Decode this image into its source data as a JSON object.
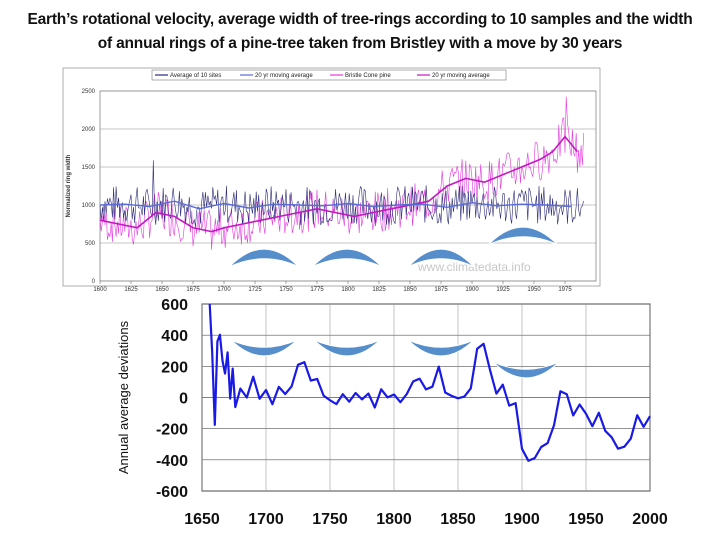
{
  "title": "Earth’s rotational velocity, average width of tree-rings according to 10 samples and the width of annual rings of a pine-tree taken from Bristley with a move by 30 years",
  "colors": {
    "navy": "#2b2b7a",
    "blue_light": "#5b6bd6",
    "magenta": "#e23adf",
    "magenta_dark": "#c218c0",
    "line2": "#1a1ae6",
    "arc": "#4d87c9"
  },
  "chart_data": [
    {
      "type": "line",
      "legend": [
        "Average of 10 sites",
        "20 yr moving average",
        "Bristle Cone pine",
        "20 yr moving average"
      ],
      "legend_placement": "top",
      "ylabel": "Normalized ring width",
      "watermark": "www.climatedata.info",
      "xlim": [
        1600,
        2000
      ],
      "ylim": [
        0,
        2500
      ],
      "yticks": [
        0,
        500,
        1000,
        1500,
        2000,
        2500
      ],
      "xticks": [
        1600,
        1625,
        1650,
        1675,
        1700,
        1725,
        1750,
        1775,
        1800,
        1825,
        1850,
        1875,
        1900,
        1925,
        1950,
        1975
      ],
      "grid": true,
      "series": [
        {
          "name": "20 yr moving average",
          "x": [
            1600,
            1620,
            1640,
            1660,
            1680,
            1700,
            1720,
            1740,
            1760,
            1780,
            1800,
            1820,
            1840,
            1860,
            1880,
            1900,
            1920,
            1940,
            1960,
            1980
          ],
          "values": [
            1000,
            1010,
            980,
            1050,
            950,
            1020,
            960,
            1010,
            1000,
            990,
            1020,
            980,
            1000,
            1010,
            970,
            1030,
            990,
            1010,
            1000,
            980
          ]
        },
        {
          "name": "20 yr moving average",
          "x": [
            1600,
            1615,
            1630,
            1645,
            1660,
            1675,
            1690,
            1700,
            1715,
            1730,
            1745,
            1760,
            1775,
            1790,
            1805,
            1820,
            1835,
            1850,
            1865,
            1880,
            1895,
            1910,
            1925,
            1940,
            1955,
            1965,
            1975,
            1985
          ],
          "values": [
            800,
            750,
            700,
            900,
            850,
            700,
            650,
            700,
            750,
            800,
            850,
            900,
            950,
            900,
            850,
            900,
            950,
            1000,
            1050,
            1250,
            1350,
            1300,
            1400,
            1500,
            1600,
            1700,
            1900,
            1700
          ]
        }
      ]
    },
    {
      "type": "line",
      "ylabel": "Annual average deviations",
      "xlim": [
        1650,
        2000
      ],
      "ylim": [
        -600,
        600
      ],
      "yticks": [
        -600,
        -400,
        -200,
        0,
        200,
        400,
        600
      ],
      "xticks": [
        1650,
        1700,
        1750,
        1800,
        1850,
        1900,
        1950,
        2000
      ],
      "grid": true,
      "series": [
        {
          "x": [
            1656,
            1658,
            1660,
            1662,
            1664,
            1666,
            1668,
            1670,
            1672,
            1674,
            1676,
            1680,
            1685,
            1690,
            1695,
            1700,
            1705,
            1710,
            1715,
            1720,
            1725,
            1730,
            1735,
            1740,
            1745,
            1750,
            1755,
            1760,
            1765,
            1770,
            1775,
            1780,
            1785,
            1790,
            1795,
            1800,
            1805,
            1810,
            1815,
            1820,
            1825,
            1830,
            1835,
            1840,
            1845,
            1850,
            1855,
            1860,
            1865,
            1870,
            1875,
            1880,
            1885,
            1890,
            1895,
            1900,
            1905,
            1910,
            1915,
            1920,
            1925,
            1930,
            1935,
            1940,
            1945,
            1950,
            1955,
            1960,
            1965,
            1970,
            1975,
            1980,
            1985,
            1990,
            1995,
            2000
          ],
          "values": [
            600,
            300,
            -180,
            350,
            400,
            250,
            150,
            300,
            0,
            180,
            -50,
            50,
            0,
            120,
            -20,
            50,
            -30,
            80,
            10,
            60,
            200,
            230,
            100,
            120,
            20,
            -10,
            -40,
            10,
            -30,
            40,
            -20,
            30,
            -50,
            60,
            -10,
            20,
            -40,
            20,
            90,
            110,
            40,
            60,
            190,
            40,
            10,
            -20,
            20,
            60,
            300,
            340,
            190,
            40,
            80,
            -60,
            -40,
            -320,
            -420,
            -380,
            -330,
            -280,
            -170,
            50,
            20,
            -100,
            -40,
            -110,
            -170,
            -110,
            -200,
            -260,
            -320,
            -330,
            -260,
            -120,
            -200,
            -120
          ]
        }
      ]
    }
  ]
}
